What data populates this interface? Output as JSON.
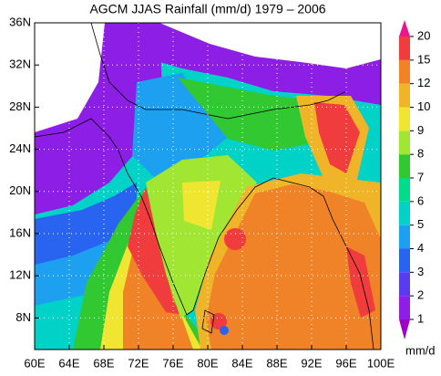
{
  "chart_data": {
    "type": "contour-map",
    "title": "AGCM JJAS Rainfall (mm/d) 1979 – 2006",
    "xlim": [
      60,
      100
    ],
    "xticks": [
      {
        "value": 60,
        "label": "60E"
      },
      {
        "value": 64,
        "label": "64E"
      },
      {
        "value": 68,
        "label": "68E"
      },
      {
        "value": 72,
        "label": "72E"
      },
      {
        "value": 76,
        "label": "76E"
      },
      {
        "value": 80,
        "label": "80E"
      },
      {
        "value": 84,
        "label": "84E"
      },
      {
        "value": 88,
        "label": "88E"
      },
      {
        "value": 92,
        "label": "92E"
      },
      {
        "value": 96,
        "label": "96E"
      },
      {
        "value": 100,
        "label": "100E"
      }
    ],
    "ylim": [
      5,
      36
    ],
    "yticks": [
      {
        "value": 8,
        "label": "8N"
      },
      {
        "value": 12,
        "label": "12N"
      },
      {
        "value": 16,
        "label": "16N"
      },
      {
        "value": 20,
        "label": "20N"
      },
      {
        "value": 24,
        "label": "24N"
      },
      {
        "value": 28,
        "label": "28N"
      },
      {
        "value": 32,
        "label": "32N"
      },
      {
        "value": 36,
        "label": "36N"
      }
    ],
    "grid": true,
    "colorbar": {
      "label": "mm/d",
      "levels": [
        1,
        2,
        3,
        4,
        5,
        6,
        7,
        8,
        9,
        10,
        12,
        15,
        20
      ],
      "colors": [
        "#a000c8",
        "#8c1ee6",
        "#5a3cf0",
        "#2864f0",
        "#1ea0f0",
        "#00d2c8",
        "#00dc8c",
        "#32c832",
        "#a0e632",
        "#f0e632",
        "#f0b428",
        "#f08228",
        "#f03c3c",
        "#f0148c"
      ]
    }
  }
}
